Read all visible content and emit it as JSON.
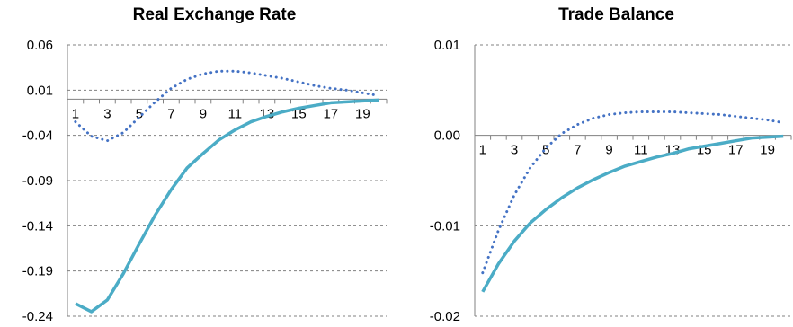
{
  "chart_data": [
    {
      "type": "line",
      "title": "Real Exchange Rate",
      "xlabel": "",
      "ylabel": "",
      "ylim": [
        -0.24,
        0.06
      ],
      "xlim": [
        0.5,
        20.5
      ],
      "yticks": [
        "0.06",
        "0.01",
        "-0.04",
        "-0.09",
        "-0.14",
        "-0.19",
        "-0.24"
      ],
      "ytick_values": [
        0.06,
        0.01,
        -0.04,
        -0.09,
        -0.14,
        -0.19,
        -0.24
      ],
      "xticks": [
        "1",
        "3",
        "5",
        "7",
        "9",
        "11",
        "13",
        "15",
        "17",
        "19"
      ],
      "grid": true,
      "series": [
        {
          "style": "solid",
          "color": "#4bacc6",
          "x": [
            1,
            2,
            3,
            4,
            5,
            6,
            7,
            8,
            9,
            10,
            11,
            12,
            13,
            14,
            15,
            16,
            17,
            18,
            19,
            20
          ],
          "values": [
            -0.226,
            -0.235,
            -0.222,
            -0.193,
            -0.16,
            -0.128,
            -0.1,
            -0.076,
            -0.06,
            -0.045,
            -0.034,
            -0.025,
            -0.019,
            -0.014,
            -0.01,
            -0.007,
            -0.004,
            -0.003,
            -0.002,
            -0.001
          ]
        },
        {
          "style": "dotted",
          "color": "#4472c4",
          "x": [
            1,
            2,
            3,
            4,
            5,
            6,
            7,
            8,
            9,
            10,
            11,
            12,
            13,
            14,
            15,
            16,
            17,
            18,
            19,
            20
          ],
          "values": [
            -0.025,
            -0.041,
            -0.046,
            -0.037,
            -0.02,
            -0.003,
            0.012,
            0.022,
            0.028,
            0.031,
            0.031,
            0.029,
            0.026,
            0.023,
            0.019,
            0.015,
            0.012,
            0.01,
            0.007,
            0.004
          ]
        }
      ]
    },
    {
      "type": "line",
      "title": "Trade Balance",
      "xlabel": "",
      "ylabel": "",
      "ylim": [
        -0.02,
        0.01
      ],
      "xlim": [
        0.5,
        20.5
      ],
      "yticks": [
        "0.01",
        "0.00",
        "-0.01",
        "-0.02"
      ],
      "ytick_values": [
        0.01,
        0.0,
        -0.01,
        -0.02
      ],
      "xticks": [
        "1",
        "3",
        "5",
        "7",
        "9",
        "11",
        "13",
        "15",
        "17",
        "19"
      ],
      "grid": true,
      "series": [
        {
          "style": "solid",
          "color": "#4bacc6",
          "x": [
            1,
            2,
            3,
            4,
            5,
            6,
            7,
            8,
            9,
            10,
            11,
            12,
            13,
            14,
            15,
            16,
            17,
            18,
            19,
            20
          ],
          "values": [
            -0.0173,
            -0.0142,
            -0.0117,
            -0.0097,
            -0.0082,
            -0.0069,
            -0.0058,
            -0.0049,
            -0.0041,
            -0.0034,
            -0.0029,
            -0.0024,
            -0.002,
            -0.0015,
            -0.0012,
            -0.0009,
            -0.0006,
            -0.0003,
            -0.0002,
            -0.0001
          ]
        },
        {
          "style": "dotted",
          "color": "#4472c4",
          "x": [
            1,
            2,
            3,
            4,
            5,
            6,
            7,
            8,
            9,
            10,
            11,
            12,
            13,
            14,
            15,
            16,
            17,
            18,
            19,
            20
          ],
          "values": [
            -0.0152,
            -0.0105,
            -0.0066,
            -0.0036,
            -0.0014,
            0.0002,
            0.0012,
            0.0019,
            0.0023,
            0.0025,
            0.0026,
            0.0026,
            0.0026,
            0.0025,
            0.0024,
            0.0023,
            0.0021,
            0.0019,
            0.0017,
            0.0014
          ]
        }
      ]
    }
  ]
}
